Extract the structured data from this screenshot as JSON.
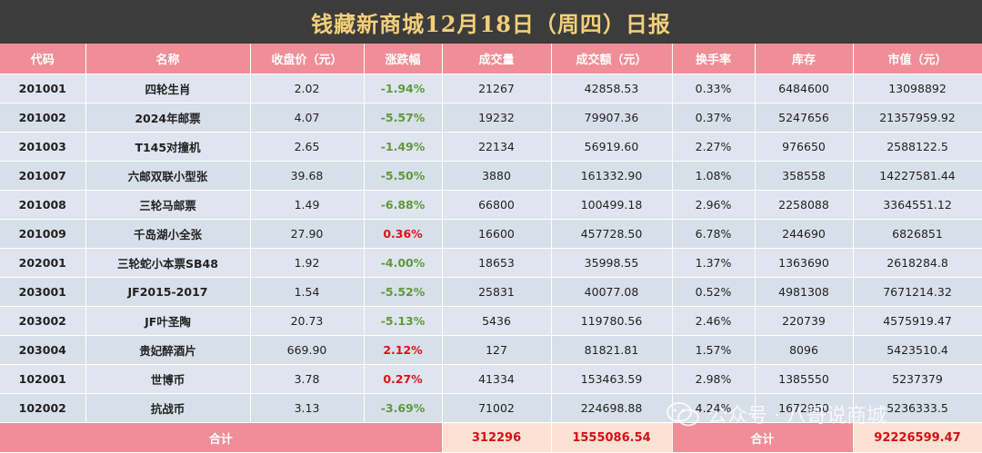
{
  "title": "钱藏新商城12月18日（周四）日报",
  "headers": [
    "代码",
    "名称",
    "收盘价（元）",
    "涨跌幅",
    "成交量",
    "成交额（元）",
    "换手率",
    "库存",
    "市值（元）"
  ],
  "rows": [
    {
      "code": "201001",
      "name": "四轮生肖",
      "close": "2.02",
      "change": "-1.94%",
      "dir": "neg",
      "volume": "21267",
      "amount": "42858.53",
      "turnover": "0.33%",
      "stock": "6484600",
      "cap": "13098892"
    },
    {
      "code": "201002",
      "name": "2024年邮票",
      "close": "4.07",
      "change": "-5.57%",
      "dir": "neg",
      "volume": "19232",
      "amount": "79907.36",
      "turnover": "0.37%",
      "stock": "5247656",
      "cap": "21357959.92"
    },
    {
      "code": "201003",
      "name": "T145对撞机",
      "close": "2.65",
      "change": "-1.49%",
      "dir": "neg",
      "volume": "22134",
      "amount": "56919.60",
      "turnover": "2.27%",
      "stock": "976650",
      "cap": "2588122.5"
    },
    {
      "code": "201007",
      "name": "六邮双联小型张",
      "close": "39.68",
      "change": "-5.50%",
      "dir": "neg",
      "volume": "3880",
      "amount": "161332.90",
      "turnover": "1.08%",
      "stock": "358558",
      "cap": "14227581.44"
    },
    {
      "code": "201008",
      "name": "三轮马邮票",
      "close": "1.49",
      "change": "-6.88%",
      "dir": "neg",
      "volume": "66800",
      "amount": "100499.18",
      "turnover": "2.96%",
      "stock": "2258088",
      "cap": "3364551.12"
    },
    {
      "code": "201009",
      "name": "千岛湖小全张",
      "close": "27.90",
      "change": "0.36%",
      "dir": "pos",
      "volume": "16600",
      "amount": "457728.50",
      "turnover": "6.78%",
      "stock": "244690",
      "cap": "6826851"
    },
    {
      "code": "202001",
      "name": "三轮蛇小本票SB48",
      "close": "1.92",
      "change": "-4.00%",
      "dir": "neg",
      "volume": "18653",
      "amount": "35998.55",
      "turnover": "1.37%",
      "stock": "1363690",
      "cap": "2618284.8"
    },
    {
      "code": "203001",
      "name": "JF2015-2017",
      "close": "1.54",
      "change": "-5.52%",
      "dir": "neg",
      "volume": "25831",
      "amount": "40077.08",
      "turnover": "0.52%",
      "stock": "4981308",
      "cap": "7671214.32"
    },
    {
      "code": "203002",
      "name": "JF叶圣陶",
      "close": "20.73",
      "change": "-5.13%",
      "dir": "neg",
      "volume": "5436",
      "amount": "119780.56",
      "turnover": "2.46%",
      "stock": "220739",
      "cap": "4575919.47"
    },
    {
      "code": "203004",
      "name": "贵妃醉酒片",
      "close": "669.90",
      "change": "2.12%",
      "dir": "pos",
      "volume": "127",
      "amount": "81821.81",
      "turnover": "1.57%",
      "stock": "8096",
      "cap": "5423510.4"
    },
    {
      "code": "102001",
      "name": "世博币",
      "close": "3.78",
      "change": "0.27%",
      "dir": "pos",
      "volume": "41334",
      "amount": "153463.59",
      "turnover": "2.98%",
      "stock": "1385550",
      "cap": "5237379"
    },
    {
      "code": "102002",
      "name": "抗战币",
      "close": "3.13",
      "change": "-3.69%",
      "dir": "neg",
      "volume": "71002",
      "amount": "224698.88",
      "turnover": "4.24%",
      "stock": "1672950",
      "cap": "5236333.5"
    }
  ],
  "footer": {
    "label_left": "合计",
    "total_volume": "312296",
    "total_amount": "1555086.54",
    "label_right": "合计",
    "total_cap": "92226599.47"
  },
  "watermark": "公众号 · 八哥说商城",
  "colors": {
    "header_bg": "#ef8e96",
    "row_bg": "#dee5ef",
    "down": "#5f9a37",
    "up": "#e0101a",
    "title": "#f2cf7a",
    "total_bg": "#fce2d2"
  }
}
